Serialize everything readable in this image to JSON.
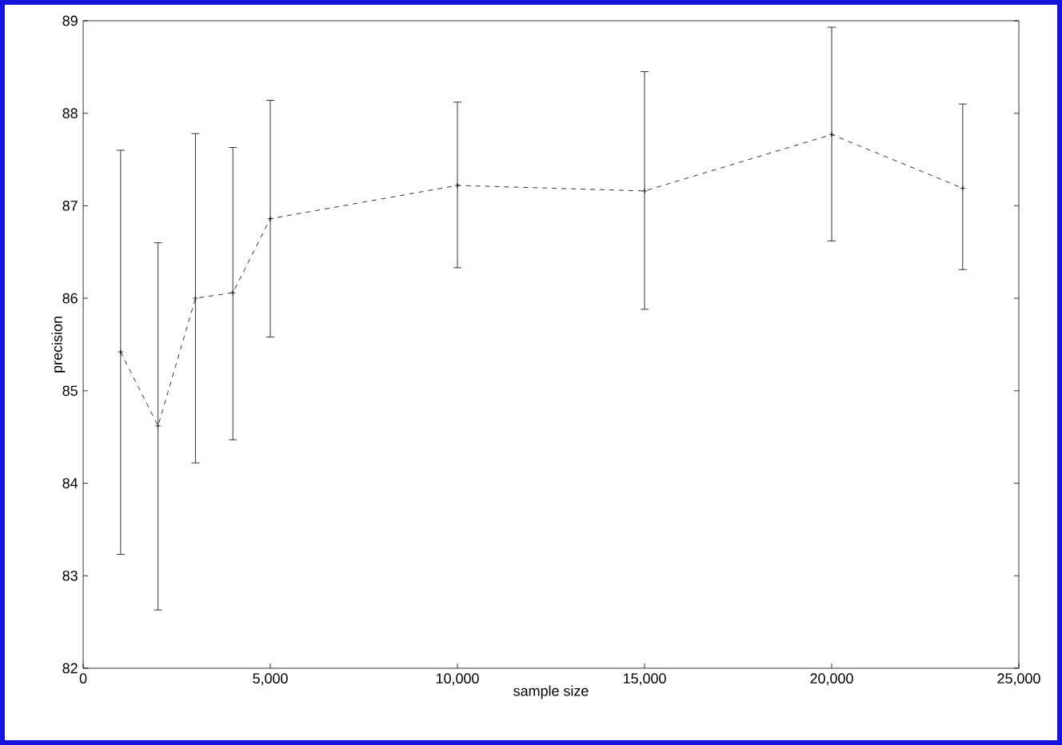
{
  "chart_data": {
    "type": "line",
    "xlabel": "sample size",
    "ylabel": "precision",
    "x": [
      1000,
      2000,
      3000,
      4000,
      5000,
      10000,
      15000,
      20000,
      23500
    ],
    "values": [
      85.42,
      84.62,
      86.0,
      86.06,
      86.86,
      87.22,
      87.16,
      87.77,
      87.19
    ],
    "errors": [
      [
        83.23,
        87.6
      ],
      [
        82.63,
        86.6
      ],
      [
        84.22,
        87.78
      ],
      [
        84.47,
        87.63
      ],
      [
        85.58,
        88.14
      ],
      [
        86.33,
        88.12
      ],
      [
        85.88,
        88.45
      ],
      [
        86.62,
        88.93
      ],
      [
        86.31,
        88.1
      ]
    ],
    "color": "#000000",
    "line_style": "dashed",
    "marker": "cross",
    "grid": false,
    "xlim": [
      0,
      25000
    ],
    "ylim": [
      82,
      89
    ],
    "xticks": [
      {
        "value": 0,
        "label": "0"
      },
      {
        "value": 5000,
        "label": "5,000"
      },
      {
        "value": 10000,
        "label": "10,000"
      },
      {
        "value": 15000,
        "label": "15,000"
      },
      {
        "value": 20000,
        "label": "20,000"
      },
      {
        "value": 25000,
        "label": "25,000"
      }
    ],
    "yticks": [
      82,
      83,
      84,
      85,
      86,
      87,
      88,
      89
    ]
  }
}
